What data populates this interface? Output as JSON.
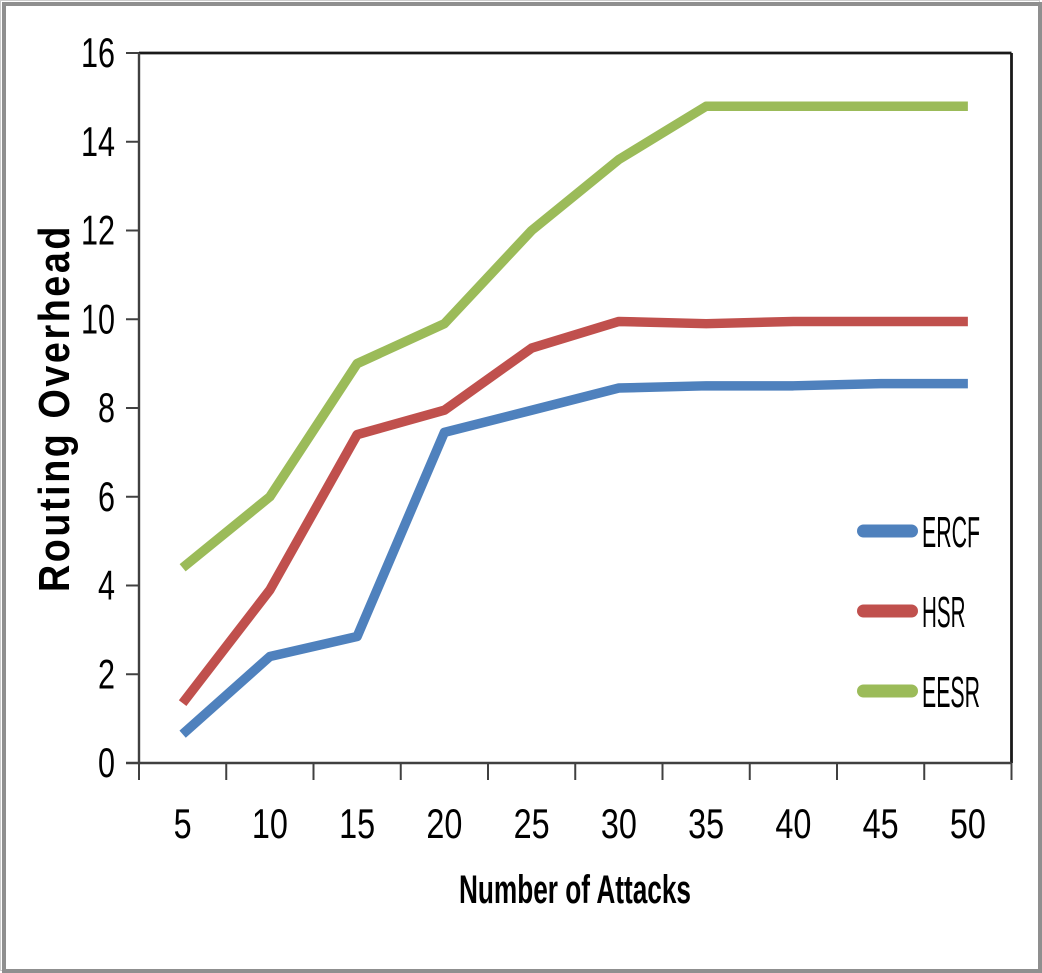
{
  "chart_data": {
    "type": "line",
    "title": "",
    "xlabel": "Number of Attacks",
    "ylabel": "Routing Overhead",
    "x": [
      5,
      10,
      15,
      20,
      25,
      30,
      35,
      40,
      45,
      50
    ],
    "xlim": "categorical",
    "ylim": [
      0,
      16
    ],
    "ytick_step": 2,
    "grid": false,
    "legend_position": "inside-right",
    "series": [
      {
        "name": "ERCF",
        "color": "#4F81BD",
        "values": [
          0.65,
          2.4,
          2.85,
          7.45,
          7.95,
          8.45,
          8.5,
          8.5,
          8.55,
          8.55
        ]
      },
      {
        "name": "HSR",
        "color": "#C0504D",
        "values": [
          1.35,
          3.9,
          7.4,
          7.95,
          9.35,
          9.95,
          9.9,
          9.95,
          9.95,
          9.95
        ]
      },
      {
        "name": "EESR",
        "color": "#9BBB59",
        "values": [
          4.4,
          6.0,
          9.0,
          9.9,
          12.0,
          13.6,
          14.8,
          14.8,
          14.8,
          14.8
        ]
      }
    ]
  },
  "colors": {
    "axis_line": "#404040",
    "plot_border": "#1a1a1a",
    "tick_label": "#000000",
    "frame_border": "#8f8f8f",
    "background": "#ffffff"
  }
}
